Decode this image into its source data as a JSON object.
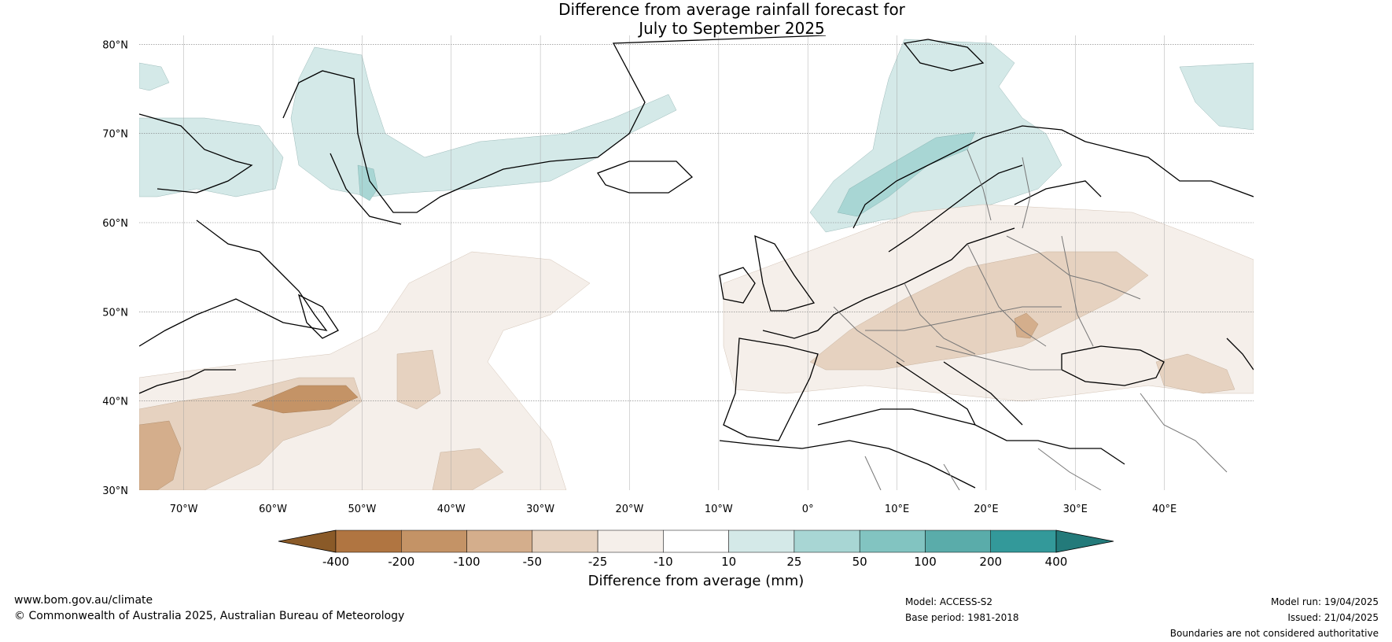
{
  "title_line1": "Difference from average rainfall forecast for",
  "title_line2": "July to September 2025",
  "lat_labels": [
    "80°N",
    "70°N",
    "60°N",
    "50°N",
    "40°N",
    "30°N"
  ],
  "lon_labels": [
    "70°W",
    "60°W",
    "50°W",
    "40°W",
    "30°W",
    "20°W",
    "10°W",
    "0°",
    "10°E",
    "20°E",
    "30°E",
    "40°E"
  ],
  "colorbar": {
    "title": "Difference from average (mm)",
    "tick_labels": [
      "-400",
      "-200",
      "-100",
      "-50",
      "-25",
      "-10",
      "10",
      "25",
      "50",
      "100",
      "200",
      "400"
    ],
    "colors": [
      "#8a5a28",
      "#b07541",
      "#c49366",
      "#d4ae8c",
      "#e6d2c0",
      "#f5efea",
      "#ffffff",
      "#d4e9e8",
      "#a8d6d4",
      "#82c4c1",
      "#5aacaa",
      "#33999a",
      "#237a7a"
    ]
  },
  "footer": {
    "website": "www.bom.gov.au/climate",
    "copyright": "© Commonwealth of Australia 2025, Australian Bureau of Meteorology",
    "model": "Model: ACCESS-S2",
    "base_period": "Base period: 1981-2018",
    "model_run": "Model run: 19/04/2025",
    "issued": "Issued: 21/04/2025",
    "disclaimer": "Boundaries are not considered authoritative"
  }
}
